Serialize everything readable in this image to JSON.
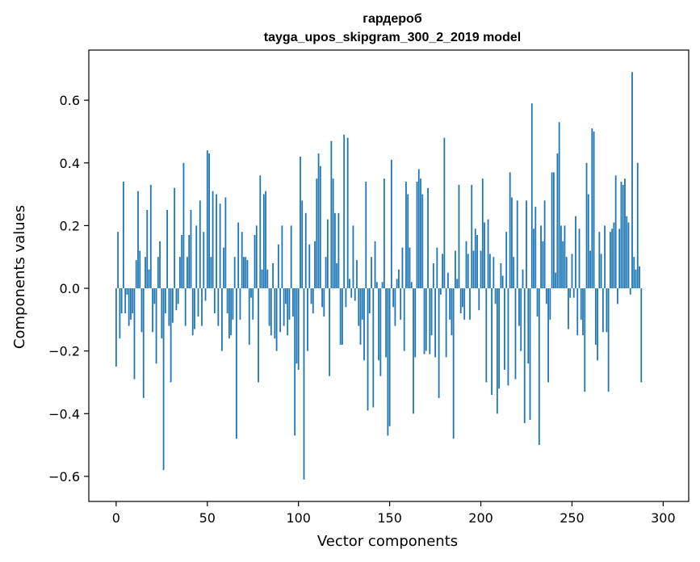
{
  "chart_data": {
    "type": "bar",
    "title": "гардероб",
    "subtitle": "tayga_upos_skipgram_300_2_2019 model",
    "xlabel": "Vector components",
    "ylabel": "Components values",
    "xlim": [
      -15,
      314
    ],
    "ylim": [
      -0.68,
      0.76
    ],
    "xticks": [
      0,
      50,
      100,
      150,
      200,
      250,
      300
    ],
    "yticks": [
      -0.6,
      -0.4,
      -0.2,
      0.0,
      0.2,
      0.4,
      0.6
    ],
    "xtick_labels": [
      "0",
      "50",
      "100",
      "150",
      "200",
      "250",
      "300"
    ],
    "ytick_labels": [
      "−0.6",
      "−0.4",
      "−0.2",
      "0.0",
      "0.2",
      "0.4",
      "0.6"
    ],
    "grid": false,
    "color": "#1f77b4",
    "x_start": 0,
    "values": [
      -0.25,
      0.18,
      -0.16,
      -0.08,
      0.34,
      -0.08,
      -0.02,
      -0.12,
      -0.1,
      -0.08,
      -0.29,
      0.09,
      0.31,
      0.12,
      -0.14,
      -0.35,
      0.1,
      0.25,
      0.06,
      0.33,
      -0.14,
      -0.05,
      -0.24,
      0.1,
      0.15,
      -0.16,
      -0.58,
      -0.08,
      0.25,
      -0.12,
      -0.3,
      -0.11,
      0.32,
      -0.07,
      -0.05,
      0.1,
      0.17,
      0.4,
      -0.12,
      0.1,
      0.17,
      0.25,
      -0.15,
      -0.13,
      0.2,
      -0.09,
      0.28,
      -0.12,
      0.18,
      -0.04,
      0.44,
      0.43,
      0.1,
      0.31,
      -0.08,
      0.3,
      -0.12,
      0.27,
      -0.2,
      0.13,
      0.29,
      -0.08,
      -0.16,
      -0.15,
      -0.1,
      0.1,
      -0.48,
      0.21,
      -0.1,
      0.18,
      0.1,
      0.1,
      0.09,
      -0.18,
      -0.03,
      -0.1,
      0.17,
      0.2,
      -0.3,
      0.36,
      0.06,
      0.3,
      0.31,
      0.06,
      -0.12,
      -0.15,
      0.08,
      -0.16,
      -0.2,
      0.14,
      -0.14,
      0.2,
      -0.12,
      -0.05,
      -0.15,
      -0.1,
      0.2,
      -0.09,
      -0.47,
      -0.24,
      -0.26,
      0.42,
      0.28,
      -0.61,
      0.24,
      -0.2,
      0.14,
      -0.05,
      -0.08,
      0.15,
      0.35,
      0.43,
      0.39,
      -0.06,
      -0.09,
      0.1,
      0.22,
      -0.28,
      0.47,
      0.35,
      0.24,
      0.08,
      0.24,
      -0.18,
      -0.18,
      0.49,
      -0.06,
      0.48,
      0.03,
      -0.03,
      0.2,
      -0.04,
      0.09,
      -0.12,
      -0.18,
      -0.1,
      -0.23,
      0.34,
      -0.39,
      -0.08,
      0.1,
      -0.38,
      0.15,
      0.02,
      -0.23,
      -0.28,
      0.02,
      0.35,
      -0.22,
      -0.47,
      -0.44,
      0.41,
      -0.06,
      -0.12,
      0.03,
      0.06,
      -0.1,
      0.13,
      -0.2,
      0.34,
      0.3,
      0.13,
      0.02,
      -0.4,
      -0.22,
      0.34,
      0.38,
      0.35,
      0.3,
      -0.21,
      -0.2,
      0.32,
      -0.21,
      -0.15,
      0.08,
      -0.22,
      0.13,
      -0.35,
      -0.02,
      0.11,
      0.48,
      -0.22,
      0.05,
      -0.1,
      -0.15,
      -0.48,
      0.12,
      0.03,
      0.33,
      -0.08,
      -0.06,
      -0.1,
      0.15,
      0.11,
      -0.1,
      0.33,
      0.12,
      0.19,
      0.17,
      -0.07,
      0.12,
      0.35,
      0.21,
      -0.3,
      0.22,
      0.11,
      -0.34,
      0.1,
      -0.05,
      -0.4,
      -0.32,
      0.08,
      0.04,
      -0.26,
      0.18,
      -0.31,
      0.37,
      0.29,
      0.1,
      -0.29,
      0.28,
      -0.12,
      -0.2,
      0.06,
      -0.43,
      0.28,
      -0.24,
      -0.42,
      0.59,
      0.19,
      0.26,
      -0.09,
      -0.5,
      0.2,
      0.15,
      0.28,
      -0.05,
      -0.3,
      -0.1,
      0.37,
      0.37,
      0.05,
      0.43,
      0.53,
      0.2,
      0.15,
      0.2,
      0.1,
      -0.13,
      -0.03,
      0.11,
      -0.03,
      0.23,
      -0.15,
      0.19,
      -0.1,
      -0.15,
      -0.33,
      0.4,
      0.3,
      0.12,
      0.51,
      0.5,
      -0.18,
      -0.23,
      0.18,
      0.11,
      -0.14,
      0.2,
      -0.14,
      -0.33,
      0.18,
      0.19,
      0.21,
      0.36,
      -0.05,
      0.19,
      0.34,
      0.33,
      0.35,
      0.23,
      0.21,
      -0.02,
      0.69,
      0.1,
      0.06,
      0.4,
      0.07,
      -0.3
    ]
  }
}
